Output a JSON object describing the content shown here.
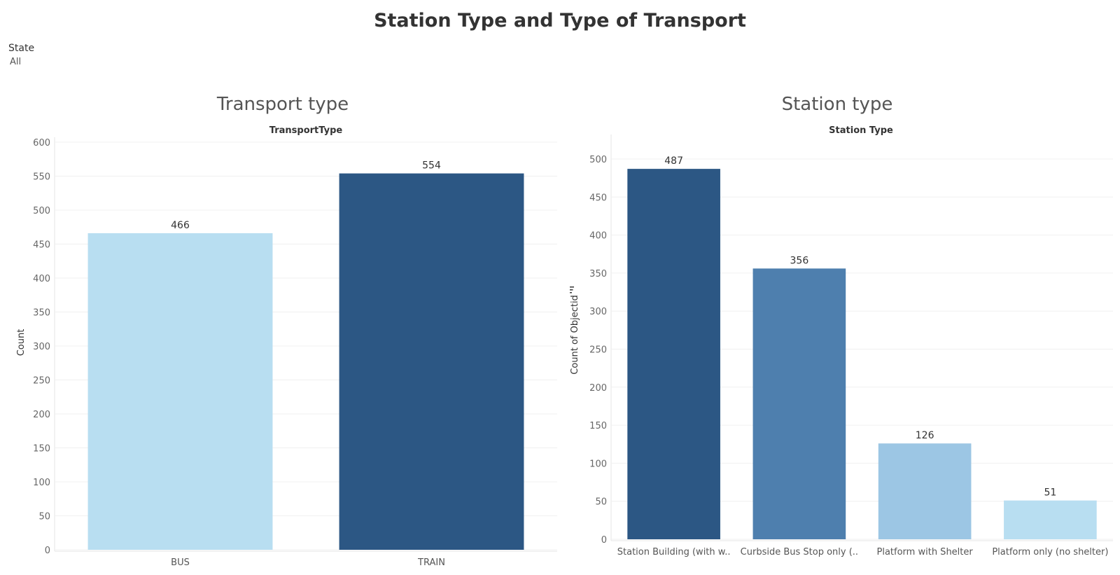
{
  "dashboard": {
    "title": "Station Type and Type of Transport",
    "filter": {
      "label": "State",
      "value": "All"
    }
  },
  "chart_data": [
    {
      "type": "bar",
      "title": "Transport type",
      "subtitle": "TransportType",
      "xlabel": "",
      "ylabel": "Count",
      "categories": [
        "BUS",
        "TRAIN"
      ],
      "values": [
        466,
        554
      ],
      "colors": [
        "#b8def1",
        "#2c5784"
      ],
      "ylim": [
        0,
        600
      ],
      "yticks": [
        0,
        50,
        100,
        150,
        200,
        250,
        300,
        350,
        400,
        450,
        500,
        550,
        600
      ],
      "data_labels": true,
      "grid": true
    },
    {
      "type": "bar",
      "title": "Station type",
      "subtitle": "Station Type",
      "xlabel": "",
      "ylabel": "Count of Objectid",
      "categories": [
        "Station Building (with w..",
        "Curbside Bus Stop only (..",
        "Platform with Shelter",
        "Platform only (no shelter)"
      ],
      "values": [
        487,
        356,
        126,
        51
      ],
      "colors": [
        "#2c5784",
        "#4e7fae",
        "#9cc6e4",
        "#b8def1"
      ],
      "ylim": [
        0,
        500
      ],
      "yticks": [
        0,
        50,
        100,
        150,
        200,
        250,
        300,
        350,
        400,
        450,
        500
      ],
      "data_labels": true,
      "grid": true,
      "sort_icon": "sort-descending-icon"
    }
  ]
}
